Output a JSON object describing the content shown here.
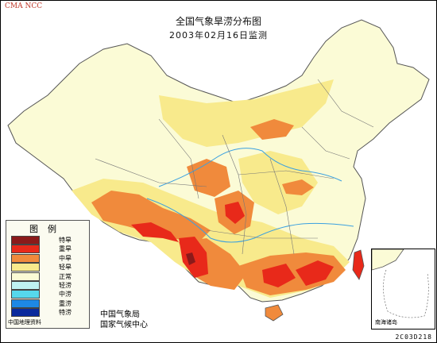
{
  "header": {
    "org_badge": "CMA NCC",
    "title": "全国气象旱涝分布图",
    "subtitle": "2003年02月16日监测"
  },
  "legend": {
    "title": "图例",
    "items": [
      {
        "label": "特旱",
        "color": "#8b1a1a"
      },
      {
        "label": "重旱",
        "color": "#e8291a"
      },
      {
        "label": "中旱",
        "color": "#f08a3c"
      },
      {
        "label": "轻旱",
        "color": "#f8ea8c"
      },
      {
        "label": "正常",
        "color": "#fbfbd6"
      },
      {
        "label": "轻涝",
        "color": "#bff2f2"
      },
      {
        "label": "中涝",
        "color": "#56d8ec"
      },
      {
        "label": "重涝",
        "color": "#1e88e5"
      },
      {
        "label": "特涝",
        "color": "#0a2a9c"
      }
    ],
    "source": "中国地理资料"
  },
  "agency": {
    "line1": "中国气象局",
    "line2": "国家气候中心"
  },
  "inset": {
    "label": "南海诸岛"
  },
  "map_code": "2C03D218",
  "colors": {
    "land": "#fbfbd6",
    "light_drought": "#f8ea8c",
    "moderate_drought": "#f08a3c",
    "severe_drought": "#e8291a",
    "extreme_drought": "#8b1a1a",
    "river": "#3aa0e0",
    "boundary": "#777777"
  }
}
